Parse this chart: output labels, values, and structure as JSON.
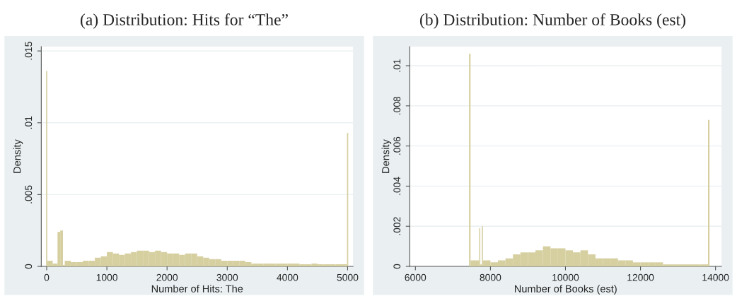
{
  "chart_data": [
    {
      "type": "histogram",
      "title": "(a) Distribution: Hits for “The”",
      "xlabel": "Number of Hits: The",
      "ylabel": "Density",
      "color": "#d6cfa0",
      "bins": [
        -10,
        10,
        100,
        180,
        225,
        270,
        300,
        400,
        500,
        600,
        700,
        800,
        900,
        1000,
        1100,
        1200,
        1300,
        1400,
        1500,
        1600,
        1700,
        1800,
        1900,
        2000,
        2100,
        2200,
        2300,
        2400,
        2500,
        2600,
        2700,
        2800,
        2900,
        3000,
        3100,
        3200,
        3300,
        3400,
        3500,
        3600,
        3700,
        3800,
        3900,
        4000,
        4100,
        4200,
        4300,
        4400,
        4500,
        4600,
        4700,
        4800,
        4900,
        4990,
        5010
      ],
      "values": [
        0.0136,
        0.0004,
        0.0002,
        0.0024,
        0.0025,
        0.0001,
        0.0004,
        0.0003,
        0.0003,
        0.0004,
        0.0004,
        0.0006,
        0.0007,
        0.001,
        0.0009,
        0.0008,
        0.0009,
        0.001,
        0.0011,
        0.0011,
        0.001,
        0.0011,
        0.001,
        0.0009,
        0.0009,
        0.0008,
        0.0009,
        0.0009,
        0.0007,
        0.0006,
        0.0005,
        0.0005,
        0.0004,
        0.0004,
        0.0004,
        0.0004,
        0.0003,
        0.0002,
        0.0002,
        0.0002,
        0.0002,
        0.0002,
        0.0002,
        0.0002,
        0.0002,
        0.00015,
        0.00015,
        0.0002,
        0.00015,
        0.00015,
        0.00015,
        0.00015,
        0.00015,
        0.0093
      ],
      "xlim": [
        -90,
        5090
      ],
      "ylim": [
        0,
        0.0153
      ],
      "xticks": [
        0,
        1000,
        2000,
        3000,
        4000,
        5000
      ],
      "yticks": [
        {
          "value": 0,
          "label": "0"
        },
        {
          "value": 0.005,
          "label": ".005"
        },
        {
          "value": 0.01,
          "label": ".01"
        },
        {
          "value": 0.015,
          "label": ".015"
        }
      ],
      "grid": "y"
    },
    {
      "type": "histogram",
      "title": "(b) Distribution: Number of Books (est)",
      "xlabel": "Number of Books (est)",
      "ylabel": "Density",
      "color": "#d6cfa0",
      "bins": [
        7430,
        7470,
        7700,
        7730,
        7770,
        7800,
        8000,
        8200,
        8400,
        8600,
        8800,
        9000,
        9200,
        9400,
        9600,
        9800,
        10000,
        10200,
        10400,
        10600,
        10800,
        11000,
        11200,
        11400,
        11600,
        11800,
        12000,
        12200,
        12400,
        12600,
        12800,
        13000,
        13200,
        13400,
        13600,
        13800,
        13840
      ],
      "values": [
        0.0106,
        0.0003,
        0.0019,
        0.0001,
        0.002,
        0.0003,
        0.0002,
        0.0003,
        0.0004,
        0.0006,
        0.0007,
        0.0007,
        0.0008,
        0.001,
        0.0009,
        0.0009,
        0.0008,
        0.0007,
        0.0008,
        0.0006,
        0.0004,
        0.0004,
        0.0004,
        0.0003,
        0.0003,
        0.0002,
        0.0002,
        0.0002,
        0.0002,
        0.0001,
        0.0001,
        0.0001,
        0.0001,
        0.0001,
        0.0001,
        0.0073
      ],
      "xlim": [
        5850,
        14160
      ],
      "ylim": [
        0,
        0.01095
      ],
      "xticks": [
        6000,
        8000,
        10000,
        12000,
        14000
      ],
      "yticks": [
        {
          "value": 0,
          "label": "0"
        },
        {
          "value": 0.002,
          "label": ".002"
        },
        {
          "value": 0.004,
          "label": ".004"
        },
        {
          "value": 0.006,
          "label": ".006"
        },
        {
          "value": 0.008,
          "label": ".008"
        },
        {
          "value": 0.01,
          "label": ".01"
        }
      ],
      "grid": "y"
    }
  ]
}
